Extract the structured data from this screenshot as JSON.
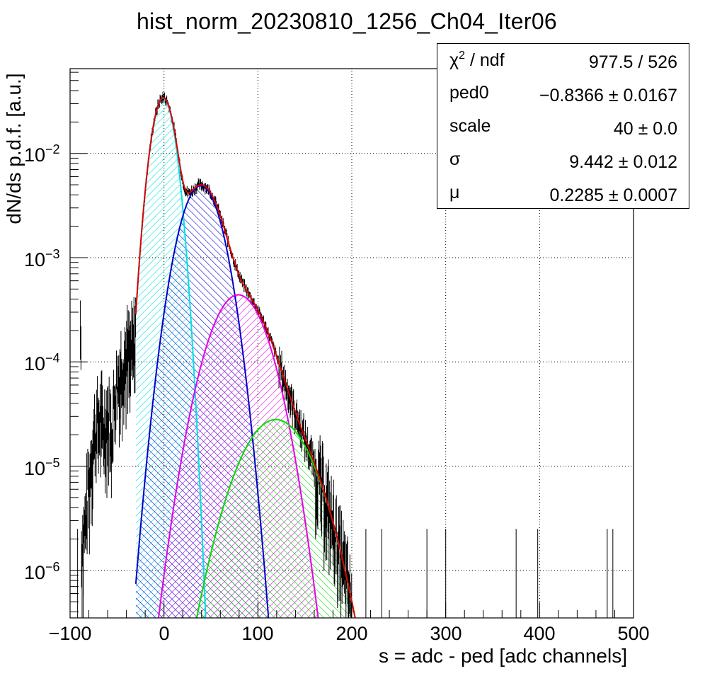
{
  "title": "hist_norm_20230810_1256_Ch04_Iter06",
  "stats": [
    {
      "name": "χ² / ndf",
      "value": "977.5 / 526"
    },
    {
      "name": "ped0",
      "value": "−0.8366 ± 0.0167"
    },
    {
      "name": "scale",
      "value": "40 ± 0.0"
    },
    {
      "name": "σ",
      "value": "9.442 ± 0.012"
    },
    {
      "name": "μ",
      "value": "0.2285 ± 0.0007"
    }
  ],
  "chart_data": {
    "type": "line",
    "title": "hist_norm_20230810_1256_Ch04_Iter06",
    "xlabel": "s = adc - ped [adc channels]",
    "ylabel": "dN/ds p.d.f. [a.u.]",
    "xlim": [
      -100,
      500
    ],
    "ylim": [
      3.5e-07,
      0.065
    ],
    "yscale": "log",
    "grid": true,
    "legend": "stats box top-right",
    "x_ticks": [
      "−100",
      "0",
      "100",
      "200",
      "300",
      "400",
      "500"
    ],
    "y_ticks": [
      {
        "base": "10",
        "exp": "−6",
        "value": 1e-06
      },
      {
        "base": "10",
        "exp": "−5",
        "value": 1e-05
      },
      {
        "base": "10",
        "exp": "−4",
        "value": 0.0001
      },
      {
        "base": "10",
        "exp": "−3",
        "value": 0.001
      },
      {
        "base": "10",
        "exp": "−2",
        "value": 0.01
      }
    ],
    "fit_range": [
      -30,
      210
    ],
    "components": [
      {
        "color": "#00e0e6",
        "amplitude": 0.034,
        "mean": -0.84,
        "sigma": 9.44
      },
      {
        "color": "#0000cc",
        "amplitude": 0.0049,
        "mean": 39.2,
        "sigma": 16.5
      },
      {
        "color": "#e600e6",
        "amplitude": 0.00044,
        "mean": 79.2,
        "sigma": 22.5
      },
      {
        "color": "#00dd00",
        "amplitude": 2.8e-05,
        "mean": 119.2,
        "sigma": 28.5
      }
    ],
    "total_color": "#dd0000",
    "histogram": {
      "color": "#000000",
      "x": [
        -88,
        -84,
        -80,
        -76,
        -72,
        -68,
        -64,
        -60,
        -56,
        -52,
        -48,
        -44,
        -40,
        -36,
        -32,
        -30
      ],
      "y": [
        1.6e-06,
        3e-06,
        7.5e-06,
        1.8e-05,
        2.6e-05,
        3.2e-05,
        2.4e-05,
        3.6e-05,
        2.2e-05,
        5.5e-05,
        8e-05,
        0.000105,
        0.00013,
        0.00012,
        0.000155,
        0.00025
      ]
    }
  }
}
